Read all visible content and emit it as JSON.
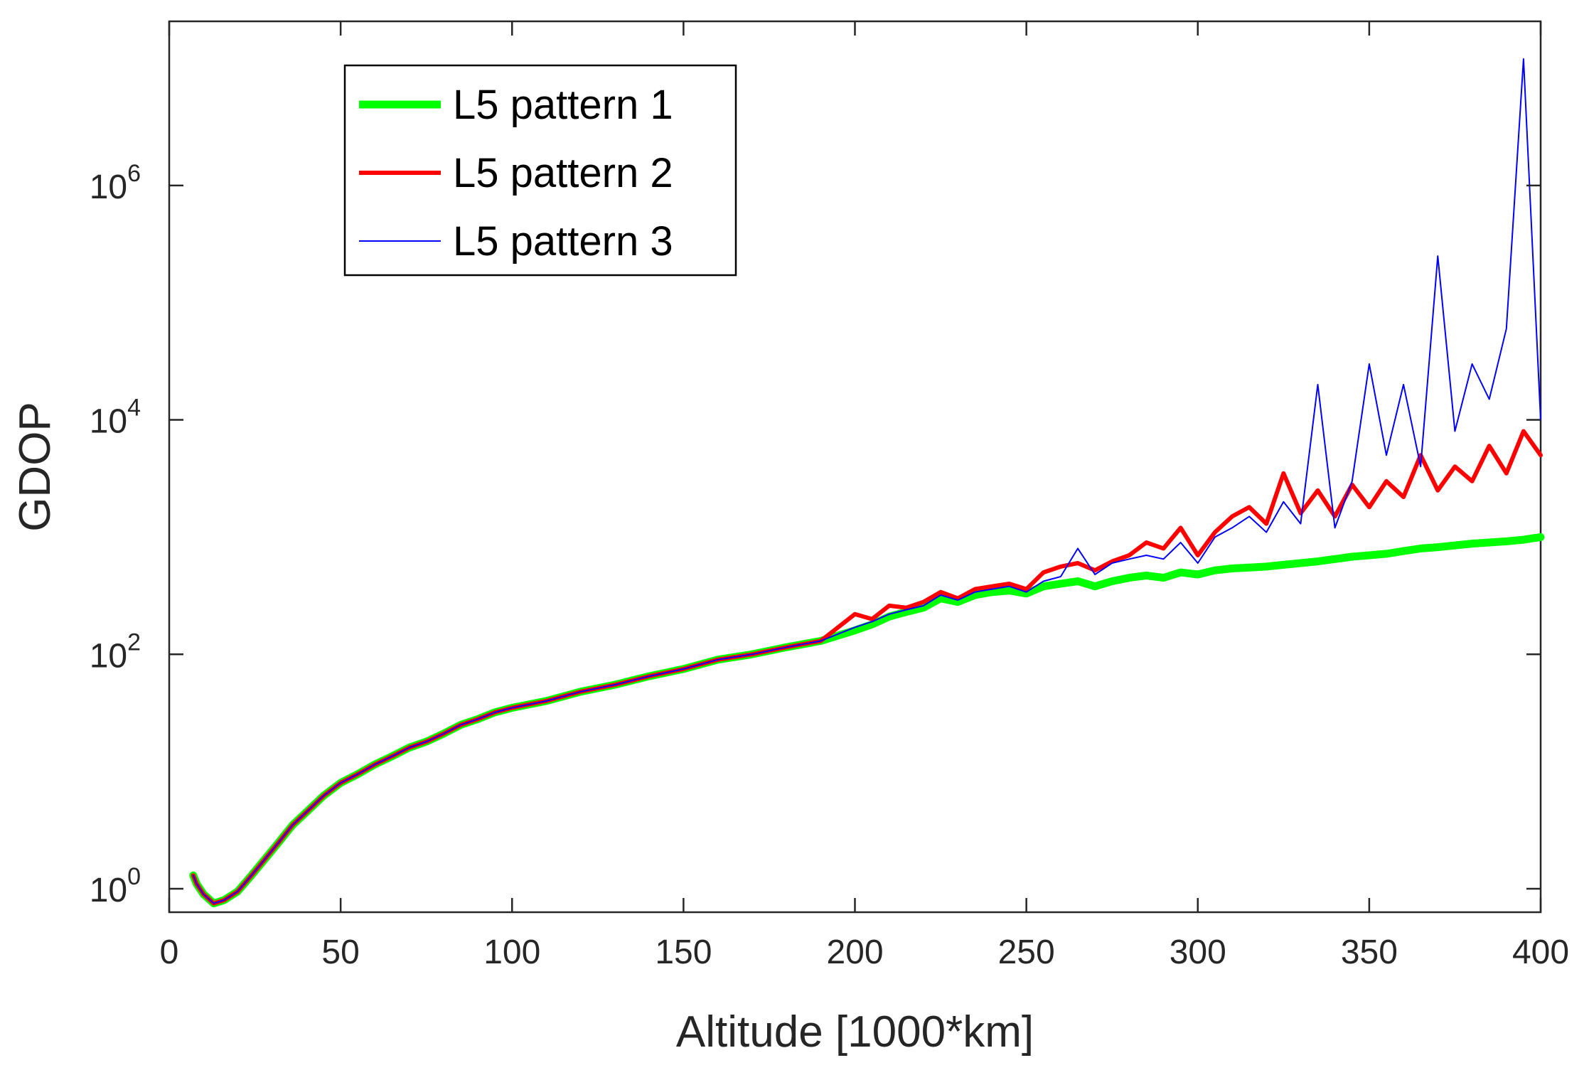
{
  "chart_data": {
    "type": "line",
    "title": "",
    "xlabel": "Altitude [1000*km]",
    "ylabel": "GDOP",
    "xlim": [
      0,
      400
    ],
    "ylim_log10": [
      -0.2,
      7.4
    ],
    "y_scale": "log",
    "x_ticks": [
      0,
      50,
      100,
      150,
      200,
      250,
      300,
      350,
      400
    ],
    "x_tick_labels": [
      "0",
      "50",
      "100",
      "150",
      "200",
      "250",
      "300",
      "350",
      "400"
    ],
    "y_tick_exponents": [
      0,
      2,
      4,
      6
    ],
    "y_tick_base": "10",
    "y_tick_labels": [
      "0",
      "2",
      "4",
      "6"
    ],
    "legend_position": "top-left",
    "series": [
      {
        "name": "L5 pattern 1",
        "color": "#00ff00",
        "x": [
          7,
          8,
          10,
          13,
          16,
          20,
          24,
          28,
          32,
          36,
          40,
          45,
          50,
          55,
          60,
          65,
          70,
          75,
          80,
          85,
          90,
          95,
          100,
          110,
          120,
          130,
          140,
          150,
          160,
          170,
          180,
          190,
          200,
          205,
          210,
          215,
          220,
          225,
          230,
          235,
          240,
          245,
          250,
          255,
          260,
          265,
          270,
          275,
          280,
          285,
          290,
          295,
          300,
          305,
          310,
          315,
          320,
          325,
          330,
          335,
          340,
          345,
          350,
          355,
          360,
          365,
          370,
          375,
          380,
          385,
          390,
          395,
          400
        ],
        "y": [
          1.3,
          1.1,
          0.9,
          0.75,
          0.8,
          0.95,
          1.3,
          1.8,
          2.5,
          3.5,
          4.5,
          6.2,
          8.0,
          9.5,
          11.5,
          13.5,
          16,
          18,
          21,
          25,
          28,
          32,
          35,
          40,
          48,
          55,
          65,
          75,
          90,
          100,
          115,
          130,
          160,
          180,
          210,
          230,
          250,
          300,
          280,
          320,
          340,
          350,
          330,
          380,
          400,
          420,
          380,
          420,
          450,
          470,
          450,
          500,
          480,
          520,
          540,
          550,
          560,
          580,
          600,
          620,
          650,
          680,
          700,
          720,
          760,
          800,
          820,
          850,
          880,
          900,
          920,
          950,
          1000
        ]
      },
      {
        "name": "L5 pattern 2",
        "color": "#ff0000",
        "x": [
          7,
          8,
          10,
          13,
          16,
          20,
          24,
          28,
          32,
          36,
          40,
          45,
          50,
          55,
          60,
          65,
          70,
          75,
          80,
          85,
          90,
          95,
          100,
          110,
          120,
          130,
          140,
          150,
          160,
          170,
          180,
          190,
          200,
          205,
          210,
          215,
          220,
          225,
          230,
          235,
          240,
          245,
          250,
          255,
          260,
          265,
          270,
          275,
          280,
          285,
          290,
          295,
          300,
          305,
          310,
          315,
          320,
          325,
          330,
          335,
          340,
          345,
          350,
          355,
          360,
          365,
          370,
          375,
          380,
          385,
          390,
          395,
          400
        ],
        "y": [
          1.3,
          1.1,
          0.9,
          0.75,
          0.8,
          0.95,
          1.3,
          1.8,
          2.5,
          3.5,
          4.5,
          6.2,
          8.0,
          9.5,
          11.5,
          13.5,
          16,
          18,
          21,
          25,
          28,
          32,
          35,
          40,
          48,
          55,
          65,
          75,
          90,
          100,
          115,
          130,
          220,
          200,
          260,
          250,
          280,
          340,
          300,
          360,
          380,
          400,
          360,
          500,
          560,
          600,
          520,
          620,
          700,
          900,
          800,
          1200,
          700,
          1100,
          1500,
          1800,
          1300,
          3500,
          1600,
          2500,
          1500,
          2800,
          1800,
          3000,
          2200,
          5000,
          2500,
          4000,
          3000,
          6000,
          3500,
          8000,
          5000
        ]
      },
      {
        "name": "L5 pattern 3",
        "color": "#0000ff",
        "x": [
          7,
          8,
          10,
          13,
          16,
          20,
          24,
          28,
          32,
          36,
          40,
          45,
          50,
          55,
          60,
          65,
          70,
          75,
          80,
          85,
          90,
          95,
          100,
          110,
          120,
          130,
          140,
          150,
          160,
          170,
          180,
          190,
          200,
          205,
          210,
          215,
          220,
          225,
          230,
          235,
          240,
          245,
          250,
          255,
          260,
          265,
          270,
          275,
          280,
          285,
          290,
          295,
          300,
          305,
          310,
          315,
          320,
          325,
          330,
          335,
          340,
          345,
          350,
          355,
          360,
          365,
          370,
          375,
          380,
          385,
          390,
          395,
          400
        ],
        "y": [
          1.3,
          1.1,
          0.9,
          0.75,
          0.8,
          0.95,
          1.3,
          1.8,
          2.5,
          3.5,
          4.5,
          6.2,
          8.0,
          9.5,
          11.5,
          13.5,
          16,
          18,
          21,
          25,
          28,
          32,
          35,
          40,
          48,
          55,
          65,
          75,
          90,
          100,
          115,
          130,
          170,
          190,
          220,
          240,
          260,
          320,
          290,
          340,
          360,
          380,
          340,
          420,
          460,
          800,
          480,
          600,
          650,
          700,
          650,
          900,
          600,
          1000,
          1200,
          1500,
          1100,
          2000,
          1300,
          20000,
          1200,
          3000,
          30000,
          5000,
          20000,
          4000,
          250000,
          8000,
          30000,
          15000,
          60000,
          12000000,
          10000
        ]
      }
    ]
  }
}
